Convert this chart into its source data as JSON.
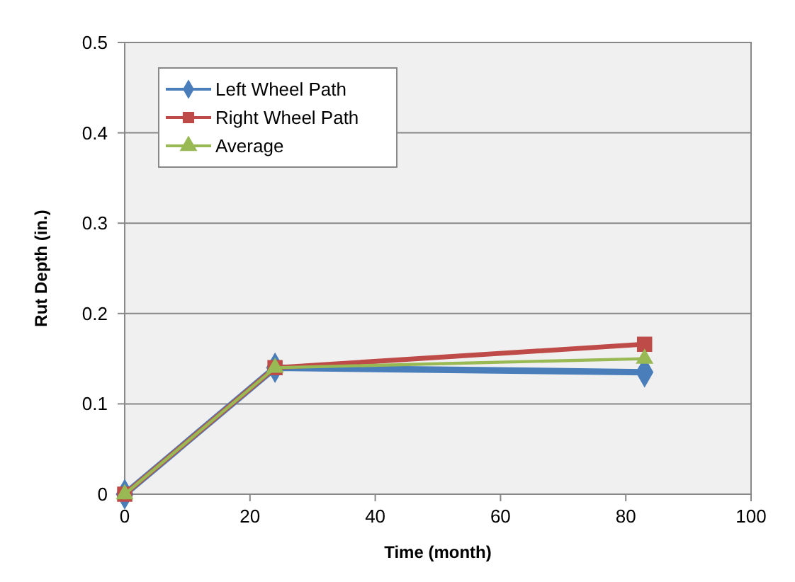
{
  "chart_data": {
    "type": "line",
    "xlabel": "Time (month)",
    "ylabel": "Rut Depth (in.)",
    "x": [
      0,
      24,
      83
    ],
    "series": [
      {
        "name": "Left Wheel Path",
        "color": "#4a7ebb",
        "values": [
          0,
          0.14,
          0.135
        ],
        "marker": "diamond"
      },
      {
        "name": "Right Wheel Path",
        "color": "#be4b48",
        "values": [
          0,
          0.14,
          0.166
        ],
        "marker": "square"
      },
      {
        "name": "Average",
        "color": "#98b954",
        "values": [
          0,
          0.14,
          0.15
        ],
        "marker": "triangle"
      }
    ],
    "xlim": [
      0,
      100
    ],
    "xticks": [
      0,
      20,
      40,
      60,
      80,
      100
    ],
    "ylim": [
      0,
      0.5
    ],
    "yticks": [
      0,
      0.1,
      0.2,
      0.3,
      0.4,
      0.5
    ],
    "grid": "y",
    "legend": "top left"
  }
}
